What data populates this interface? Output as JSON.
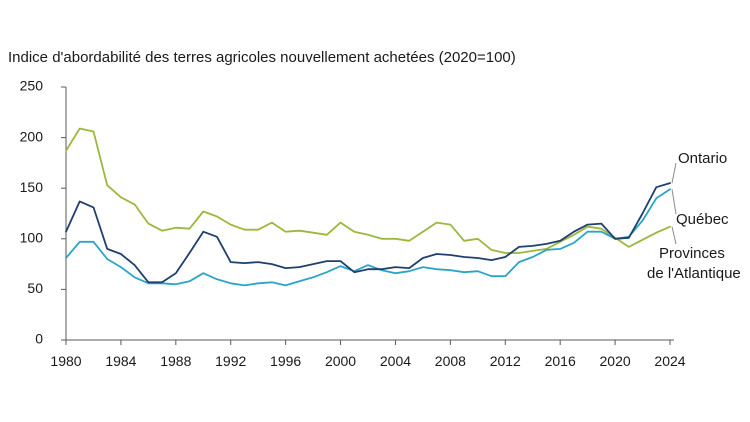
{
  "chart_data": {
    "type": "line",
    "title": "Indice d'abordabilité des terres agricoles nouvellement achetées (2020=100)",
    "xlabel": "",
    "ylabel": "",
    "xlim": [
      1980,
      2024
    ],
    "ylim": [
      0,
      250
    ],
    "x_ticks": [
      "1980",
      "1984",
      "1988",
      "1992",
      "1996",
      "2000",
      "2004",
      "2008",
      "2012",
      "2016",
      "2020",
      "2024"
    ],
    "y_ticks": [
      "0",
      "50",
      "100",
      "150",
      "200",
      "250"
    ],
    "grid": false,
    "x": [
      1980,
      1981,
      1982,
      1983,
      1984,
      1985,
      1986,
      1987,
      1988,
      1989,
      1990,
      1991,
      1992,
      1993,
      1994,
      1995,
      1996,
      1997,
      1998,
      1999,
      2000,
      2001,
      2002,
      2003,
      2004,
      2005,
      2006,
      2007,
      2008,
      2009,
      2010,
      2011,
      2012,
      2013,
      2014,
      2015,
      2016,
      2017,
      2018,
      2019,
      2020,
      2021,
      2022,
      2023,
      2024
    ],
    "series": [
      {
        "name": "Ontario",
        "label": [
          "Ontario"
        ],
        "color": "#1f3f6e",
        "values": [
          107,
          137,
          131,
          90,
          85,
          74,
          57,
          57,
          66,
          86,
          107,
          102,
          77,
          76,
          77,
          75,
          71,
          72,
          75,
          78,
          78,
          67,
          70,
          70,
          72,
          71,
          81,
          85,
          84,
          82,
          81,
          79,
          82,
          92,
          93,
          95,
          98,
          107,
          114,
          115,
          100,
          101,
          125,
          151,
          155
        ]
      },
      {
        "name": "Québec",
        "label": [
          "Québec"
        ],
        "color": "#2aa5c8",
        "values": [
          81,
          97,
          97,
          80,
          72,
          62,
          56,
          56,
          55,
          58,
          66,
          60,
          56,
          54,
          56,
          57,
          54,
          58,
          62,
          67,
          73,
          68,
          74,
          69,
          66,
          68,
          72,
          70,
          69,
          67,
          68,
          63,
          63,
          77,
          82,
          89,
          90,
          96,
          107,
          107,
          100,
          102,
          118,
          140,
          149
        ]
      },
      {
        "name": "Provinces de l'Atlantique",
        "label": [
          "Provinces",
          "de l'Atlantique"
        ],
        "color": "#9bb83c",
        "values": [
          187,
          209,
          206,
          153,
          141,
          134,
          115,
          108,
          111,
          110,
          127,
          122,
          114,
          109,
          109,
          116,
          107,
          108,
          106,
          104,
          116,
          107,
          104,
          100,
          100,
          98,
          107,
          116,
          114,
          98,
          100,
          89,
          86,
          86,
          88,
          90,
          97,
          104,
          112,
          110,
          101,
          92,
          99,
          106,
          112
        ]
      }
    ]
  }
}
